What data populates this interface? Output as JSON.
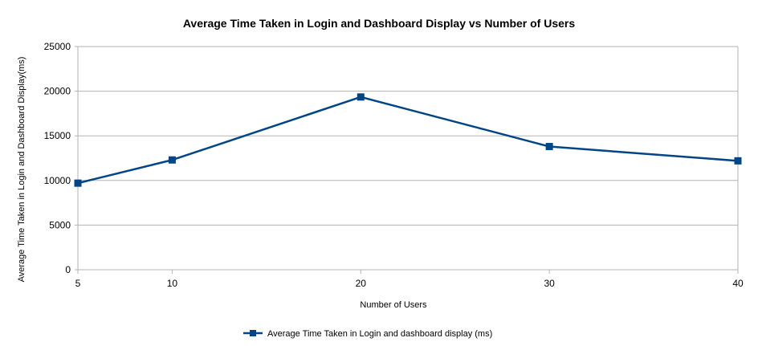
{
  "chart_data": {
    "type": "line",
    "title": "Average Time Taken in Login and Dashboard Display vs Number of Users",
    "xlabel": "Number of Users",
    "ylabel": "Average Time Taken in Login and Dashboard Display(ms)",
    "categories": [
      "5",
      "10",
      "20",
      "30",
      "40"
    ],
    "series": [
      {
        "name": "Average Time Taken in Login and dashboard display (ms)",
        "values": [
          9700,
          12300,
          19350,
          13800,
          12200
        ],
        "color": "#004586",
        "marker": "square"
      }
    ],
    "ylim": [
      0,
      25000
    ],
    "yticks": [
      "0",
      "5000",
      "10000",
      "15000",
      "20000",
      "25000"
    ],
    "grid": true,
    "legend": "bottom"
  }
}
